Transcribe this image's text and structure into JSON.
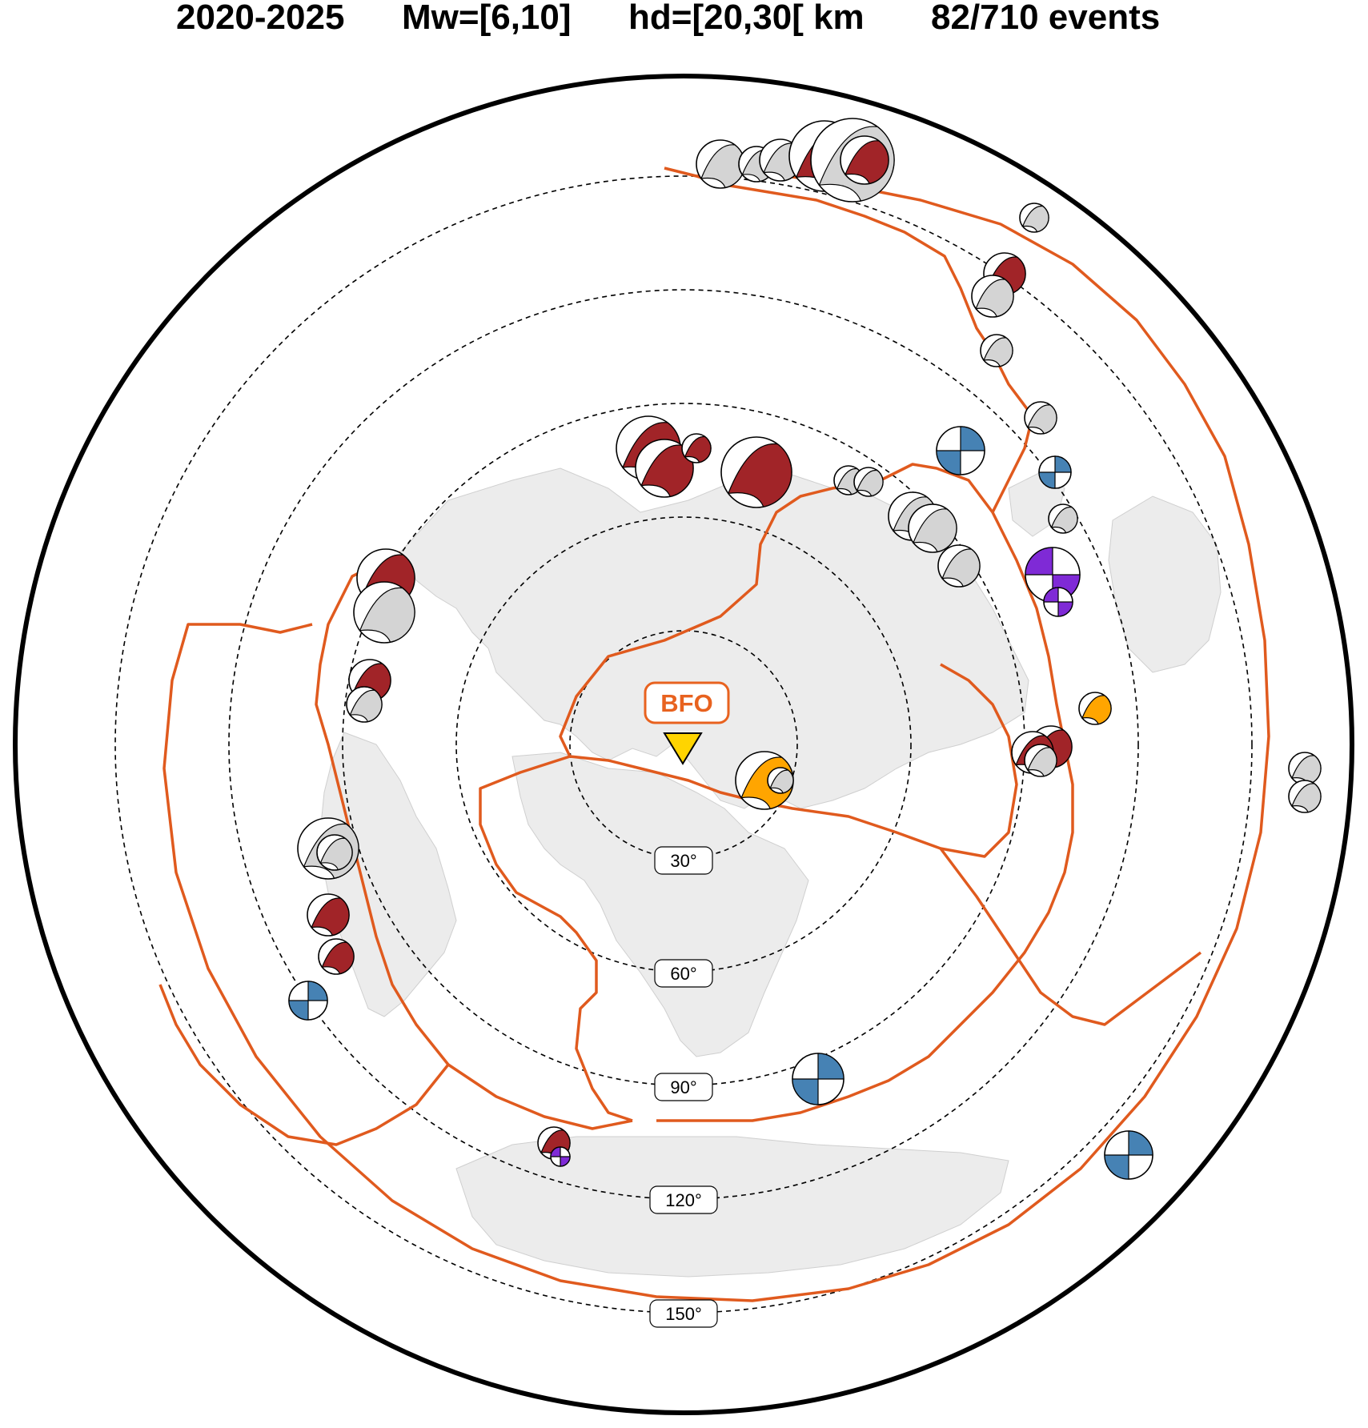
{
  "title": {
    "period": "2020-2025",
    "magnitude": "Mw=[6,10]",
    "depth": "hd=[20,30[ km",
    "count": "82/710 events"
  },
  "station": {
    "name": "BFO",
    "marker_color": "#ffd400",
    "label_color": "#e8621f"
  },
  "distance_rings": [
    "30°",
    "60°",
    "90°",
    "120°",
    "150°"
  ],
  "colors": {
    "plate_boundary": "#e05a1e",
    "land": "#ececec",
    "thrust": "#a12428",
    "strike_slip": "#4682b4",
    "normal": "#7f2ad6",
    "oblique": "#ffa500",
    "minor": "#d4d4d4"
  },
  "legend_mapping": {
    "thrust": "dark-red mechanism",
    "strike_slip": "blue mechanism",
    "normal": "purple mechanism",
    "oblique": "orange mechanism"
  }
}
